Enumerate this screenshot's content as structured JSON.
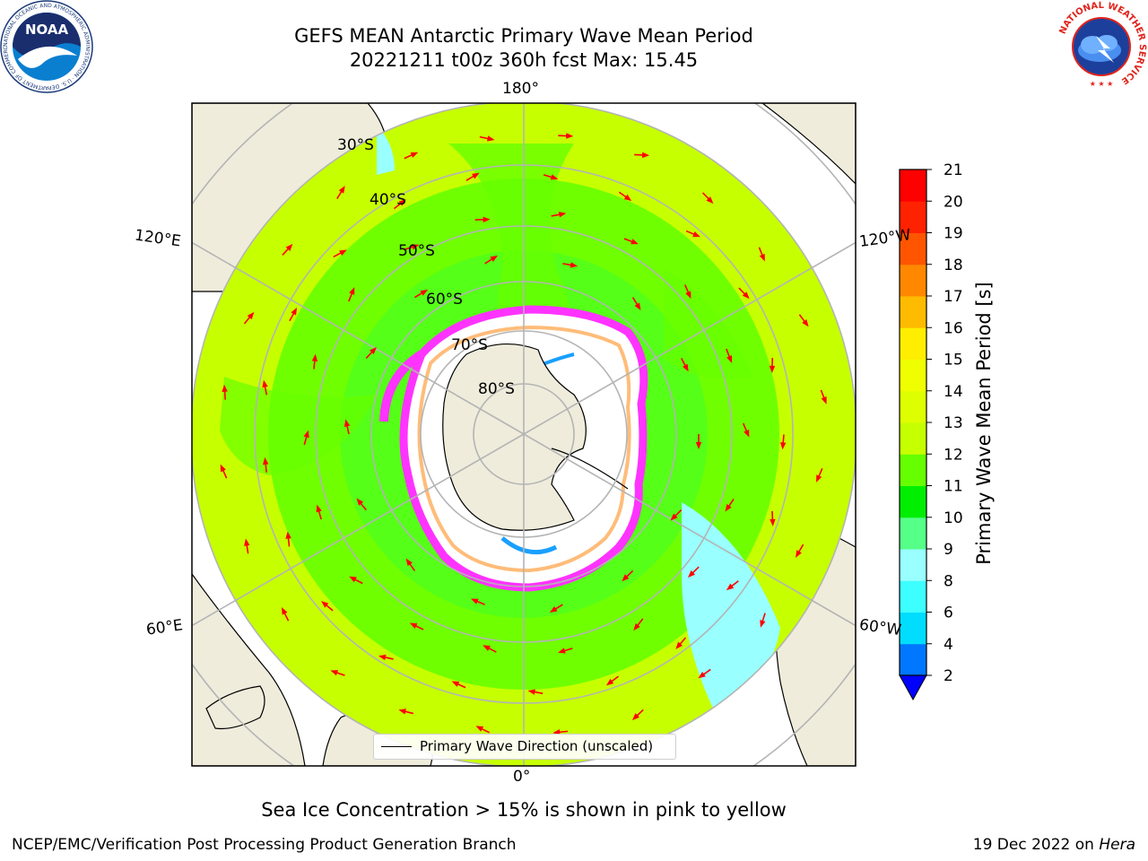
{
  "header": {
    "title_line1": "GEFS MEAN Antarctic Primary Wave Mean Period",
    "title_line2": "20221211 t00z 360h fcst   Max: 15.45"
  },
  "map": {
    "projection": "south-polar-stereographic",
    "longitude_labels": {
      "top": "180°",
      "bottom": "0°",
      "upper_left": "120°E",
      "upper_right": "120°W",
      "lower_left": "60°E",
      "lower_right": "60°W"
    },
    "latitude_labels": [
      "30°S",
      "40°S",
      "50°S",
      "60°S",
      "70°S",
      "80°S"
    ],
    "legend_label": "Primary Wave Direction (unscaled)",
    "colors": {
      "land": "#efecdc",
      "ocean_dominant": "#c6ff00",
      "ocean_secondary": "#66ff00",
      "antarctica": "#ffffff",
      "sea_ice_edge": "#ff33ff",
      "arrows": "#ff0000"
    }
  },
  "colorbar": {
    "label": "Primary Wave Mean Period [s]",
    "ticks": [
      "2",
      "4",
      "6",
      "8",
      "9",
      "10",
      "11",
      "12",
      "13",
      "14",
      "15",
      "16",
      "17",
      "18",
      "19",
      "20",
      "21"
    ],
    "colors": [
      "#0077ff",
      "#00ddff",
      "#3dffff",
      "#99ffff",
      "#55ff88",
      "#00ee00",
      "#66ff00",
      "#c6ff00",
      "#ddff00",
      "#f0ff00",
      "#ffee00",
      "#ffbb00",
      "#ff8800",
      "#ff5500",
      "#ff2200",
      "#ff0000"
    ],
    "extend_min_color": "#0000ff",
    "extend": "min"
  },
  "note": "Sea Ice Concentration > 15% is shown in pink to yellow",
  "footer": {
    "org": "NCEP/EMC/Verification Post Processing Product Generation Branch",
    "date": "19 Dec 2022 on",
    "host": "Hera"
  },
  "logos": {
    "noaa_text": "NOAA",
    "noaa_ring_text": "NATIONAL OCEANIC AND ATMOSPHERIC ADMINISTRATION · U.S. DEPARTMENT OF COMMERCE",
    "nws_ring_text": "NATIONAL WEATHER SERVICE"
  }
}
